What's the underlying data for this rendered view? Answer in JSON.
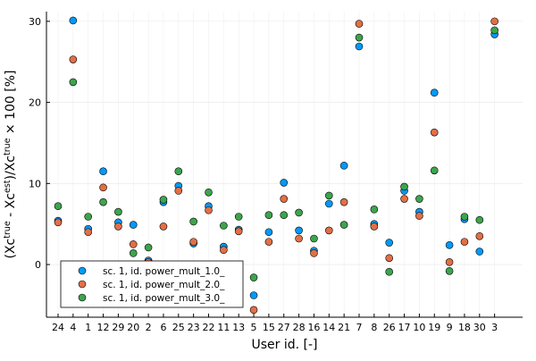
{
  "chart_data": {
    "type": "scatter",
    "xlabel": "User id. [-]",
    "ylabel": {
      "parts": [
        {
          "text": "(Xc",
          "sup": false
        },
        {
          "text": "true",
          "sup": true
        },
        {
          "text": " - Xc",
          "sup": false
        },
        {
          "text": "est",
          "sup": true
        },
        {
          "text": ")/Xc",
          "sup": false
        },
        {
          "text": "true",
          "sup": true
        },
        {
          "text": " × 100 [%]",
          "sup": false
        }
      ]
    },
    "categories": [
      "24",
      "4",
      "1",
      "12",
      "29",
      "20",
      "2",
      "6",
      "25",
      "23",
      "22",
      "11",
      "13",
      "5",
      "15",
      "27",
      "28",
      "16",
      "14",
      "21",
      "7",
      "8",
      "26",
      "17",
      "10",
      "19",
      "9",
      "18",
      "30",
      "3"
    ],
    "ylim": [
      -6.5,
      31.2
    ],
    "yticks": [
      0,
      10,
      20,
      30
    ],
    "grid": true,
    "legend_position": "bottom-left",
    "series": [
      {
        "name": "sc. 1, id. power_mult_1.0_",
        "color": "#009af9",
        "values": [
          5.4,
          30.1,
          4.4,
          11.5,
          5.2,
          4.9,
          0.5,
          7.7,
          9.7,
          2.6,
          7.2,
          2.2,
          4.3,
          -3.8,
          4.0,
          10.1,
          4.2,
          1.7,
          7.5,
          12.2,
          26.9,
          5.0,
          2.7,
          9.1,
          6.5,
          21.2,
          2.4,
          5.6,
          1.6,
          28.4
        ]
      },
      {
        "name": "sc. 1, id. power_mult_2.0_",
        "color": "#e26f46",
        "values": [
          5.2,
          25.3,
          4.0,
          9.5,
          4.7,
          2.5,
          0.3,
          4.7,
          9.1,
          2.8,
          6.7,
          1.8,
          4.1,
          -5.6,
          2.8,
          8.1,
          3.2,
          1.4,
          4.2,
          7.7,
          29.7,
          4.7,
          0.8,
          8.1,
          6.0,
          16.3,
          0.3,
          2.8,
          3.5,
          30.0
        ]
      },
      {
        "name": "sc. 1, id. power_mult_3.0_",
        "color": "#3da44d",
        "values": [
          7.2,
          22.5,
          5.9,
          7.7,
          6.5,
          1.4,
          2.1,
          8.0,
          11.5,
          5.3,
          8.9,
          4.8,
          5.9,
          -1.6,
          6.1,
          6.1,
          6.4,
          3.2,
          8.5,
          4.9,
          28.0,
          6.8,
          -0.9,
          9.6,
          8.1,
          11.6,
          -0.8,
          5.9,
          5.5,
          28.9
        ]
      }
    ]
  }
}
